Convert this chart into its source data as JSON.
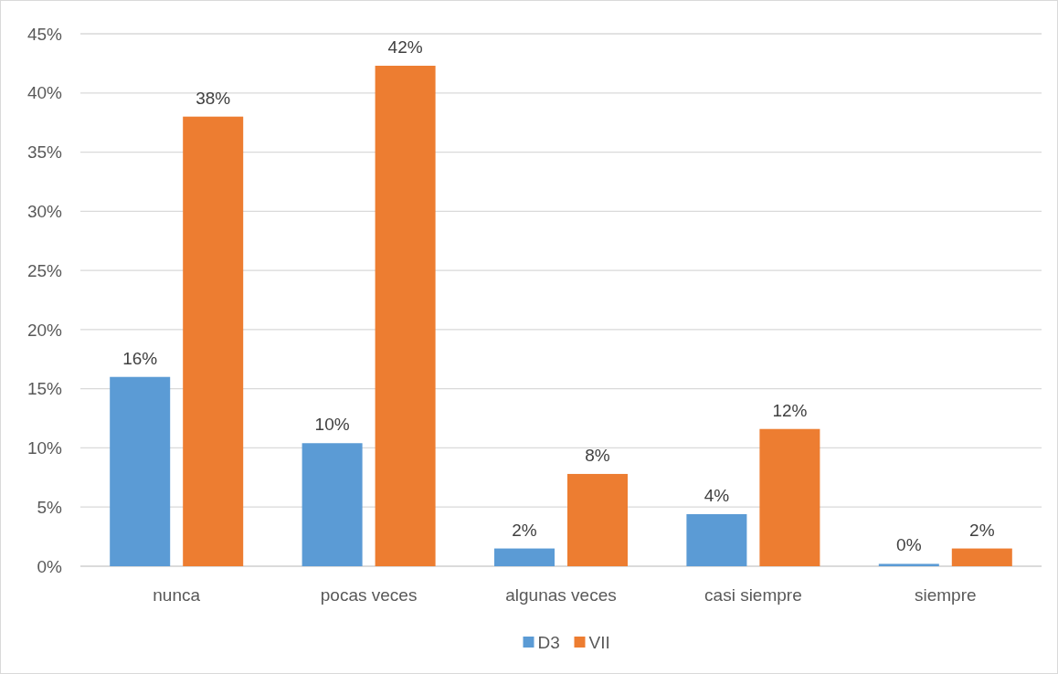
{
  "chart_data": {
    "type": "bar",
    "categories": [
      "nunca",
      "pocas veces",
      "algunas veces",
      "casi siempre",
      "siempre"
    ],
    "series": [
      {
        "name": "D3",
        "color": "#5b9bd5",
        "values": [
          16.0,
          10.4,
          1.5,
          4.4,
          0.2
        ],
        "value_labels": [
          "16%",
          "10%",
          "2%",
          "4%",
          "0%"
        ]
      },
      {
        "name": "VII",
        "color": "#ed7d31",
        "values": [
          38.0,
          42.3,
          7.8,
          11.6,
          1.5
        ],
        "value_labels": [
          "38%",
          "42%",
          "8%",
          "12%",
          "2%"
        ]
      }
    ],
    "ylim": [
      0,
      45
    ],
    "yticks": [
      {
        "value": 0,
        "label": "0%"
      },
      {
        "value": 5,
        "label": "5%"
      },
      {
        "value": 10,
        "label": "10%"
      },
      {
        "value": 15,
        "label": "15%"
      },
      {
        "value": 20,
        "label": "20%"
      },
      {
        "value": 25,
        "label": "25%"
      },
      {
        "value": 30,
        "label": "30%"
      },
      {
        "value": 35,
        "label": "35%"
      },
      {
        "value": 40,
        "label": "40%"
      },
      {
        "value": 45,
        "label": "45%"
      }
    ],
    "grid": "y",
    "legend": "bottom"
  }
}
